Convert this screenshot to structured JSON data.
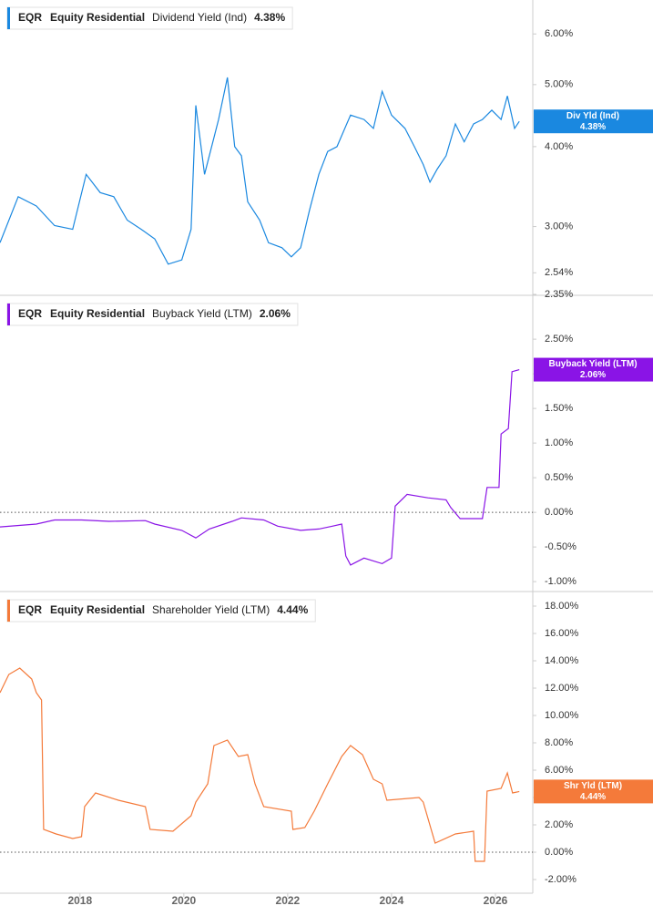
{
  "chart_data": [
    {
      "type": "line",
      "log_scale": true,
      "ticker": "EQR",
      "company": "Equity Residential",
      "xlim": [
        2016.46,
        2026.72
      ],
      "ylim": [
        2.35,
        6.78
      ],
      "yticks": [
        {
          "value": 2.35,
          "label": "2.35%"
        },
        {
          "value": 2.54,
          "label": "2.54%"
        },
        {
          "value": 3,
          "label": "3.00%"
        },
        {
          "value": 4,
          "label": "4.00%"
        },
        {
          "value": 5,
          "label": "5.00%"
        },
        {
          "value": 6,
          "label": "6.00%"
        }
      ],
      "x": [
        2016.46,
        2016.81,
        2017.16,
        2017.51,
        2017.86,
        2018.12,
        2018.39,
        2018.65,
        2018.91,
        2019.18,
        2019.44,
        2019.7,
        2019.96,
        2020.14,
        2020.23,
        2020.4,
        2020.67,
        2020.84,
        2020.98,
        2021.11,
        2021.23,
        2021.46,
        2021.63,
        2021.89,
        2022.07,
        2022.25,
        2022.42,
        2022.6,
        2022.77,
        2022.95,
        2023.21,
        2023.47,
        2023.65,
        2023.82,
        2024.0,
        2024.26,
        2024.44,
        2024.61,
        2024.74,
        2024.88,
        2025.05,
        2025.23,
        2025.4,
        2025.58,
        2025.75,
        2025.93,
        2026.11,
        2026.23,
        2026.37,
        2026.46
      ],
      "series": [
        {
          "name": "Dividend Yield (Ind)",
          "badge": "Div Yld (Ind)",
          "color": "#1a88e0",
          "values": [
            2.83,
            3.34,
            3.23,
            3.01,
            2.97,
            3.62,
            3.39,
            3.34,
            3.07,
            2.97,
            2.87,
            2.62,
            2.66,
            2.97,
            4.64,
            3.62,
            4.41,
            5.13,
            4.0,
            3.87,
            3.28,
            3.07,
            2.83,
            2.78,
            2.69,
            2.78,
            3.18,
            3.62,
            3.93,
            4.0,
            4.48,
            4.41,
            4.27,
            4.88,
            4.48,
            4.27,
            4.0,
            3.75,
            3.52,
            3.69,
            3.87,
            4.34,
            4.07,
            4.34,
            4.41,
            4.56,
            4.41,
            4.8,
            4.27,
            4.38
          ],
          "current": {
            "value": 4.38,
            "label": "4.38%"
          }
        }
      ]
    },
    {
      "type": "line",
      "zero_line": true,
      "ticker": "EQR",
      "company": "Equity Residential",
      "xlim": [
        2016.46,
        2026.72
      ],
      "ylim": [
        -1.13,
        3.12
      ],
      "yticks": [
        {
          "value": -1,
          "label": "-1.00%"
        },
        {
          "value": -0.5,
          "label": "-0.50%"
        },
        {
          "value": 0,
          "label": "0.00%"
        },
        {
          "value": 0.5,
          "label": "0.50%"
        },
        {
          "value": 1,
          "label": "1.00%"
        },
        {
          "value": 1.5,
          "label": "1.50%"
        },
        {
          "value": 2,
          "label": "2.00%"
        },
        {
          "value": 2.5,
          "label": "2.50%"
        }
      ],
      "x": [
        2016.46,
        2017.16,
        2017.51,
        2018.03,
        2018.56,
        2019.26,
        2019.44,
        2019.96,
        2020.23,
        2020.49,
        2020.93,
        2021.11,
        2021.54,
        2021.81,
        2022.25,
        2022.6,
        2022.86,
        2023.04,
        2023.12,
        2023.21,
        2023.47,
        2023.82,
        2024.0,
        2024.07,
        2024.3,
        2024.7,
        2025.05,
        2025.14,
        2025.32,
        2025.75,
        2025.84,
        2026.07,
        2026.11,
        2026.25,
        2026.32,
        2026.46
      ],
      "series": [
        {
          "name": "Buyback Yield (LTM)",
          "badge": "Buyback Yield (LTM)",
          "color": "#8a14e6",
          "values": [
            -0.21,
            -0.17,
            -0.11,
            -0.11,
            -0.13,
            -0.12,
            -0.17,
            -0.26,
            -0.37,
            -0.24,
            -0.13,
            -0.08,
            -0.11,
            -0.2,
            -0.26,
            -0.24,
            -0.2,
            -0.17,
            -0.63,
            -0.76,
            -0.66,
            -0.74,
            -0.66,
            0.09,
            0.26,
            0.21,
            0.18,
            0.07,
            -0.09,
            -0.09,
            0.36,
            0.36,
            1.13,
            1.21,
            2.03,
            2.06
          ],
          "current": {
            "value": 2.06,
            "label": "2.06%"
          }
        }
      ]
    },
    {
      "type": "line",
      "zero_line": true,
      "ticker": "EQR",
      "company": "Equity Residential",
      "xlim": [
        2016.46,
        2026.72
      ],
      "xticks": [
        2018,
        2020,
        2022,
        2024,
        2026
      ],
      "ylim": [
        -3,
        19
      ],
      "yticks": [
        {
          "value": -2,
          "label": "-2.00%"
        },
        {
          "value": 0,
          "label": "0.00%"
        },
        {
          "value": 2,
          "label": "2.00%"
        },
        {
          "value": 4,
          "label": "4.00%"
        },
        {
          "value": 6,
          "label": "6.00%"
        },
        {
          "value": 8,
          "label": "8.00%"
        },
        {
          "value": 10,
          "label": "10.00%"
        },
        {
          "value": 12,
          "label": "12.00%"
        },
        {
          "value": 14,
          "label": "14.00%"
        },
        {
          "value": 16,
          "label": "16.00%"
        },
        {
          "value": 18,
          "label": "18.00%"
        }
      ],
      "x": [
        2016.46,
        2016.63,
        2016.84,
        2017.07,
        2017.16,
        2017.26,
        2017.3,
        2017.54,
        2017.86,
        2018.03,
        2018.09,
        2018.3,
        2018.74,
        2019.26,
        2019.35,
        2019.79,
        2020.14,
        2020.23,
        2020.46,
        2020.58,
        2020.84,
        2021.05,
        2021.23,
        2021.37,
        2021.54,
        2022.07,
        2022.1,
        2022.33,
        2022.51,
        2022.77,
        2023.04,
        2023.21,
        2023.44,
        2023.65,
        2023.82,
        2023.91,
        2024.53,
        2024.61,
        2024.84,
        2025.23,
        2025.58,
        2025.61,
        2025.79,
        2025.84,
        2026.11,
        2026.23,
        2026.33,
        2026.46
      ],
      "series": [
        {
          "name": "Shareholder Yield (LTM)",
          "badge": "Shr Yld (LTM)",
          "color": "#f47a3a",
          "values": [
            11.67,
            13.0,
            13.47,
            12.67,
            11.67,
            11.13,
            1.67,
            1.33,
            1.0,
            1.13,
            3.33,
            4.33,
            3.8,
            3.33,
            1.67,
            1.53,
            2.67,
            3.67,
            5.0,
            7.8,
            8.2,
            7.0,
            7.13,
            5.0,
            3.33,
            3.0,
            1.67,
            1.8,
            3.0,
            5.0,
            7.0,
            7.8,
            7.13,
            5.33,
            5.0,
            3.8,
            4.0,
            3.67,
            0.67,
            1.33,
            1.53,
            -0.67,
            -0.67,
            4.47,
            4.67,
            5.8,
            4.33,
            4.44
          ],
          "current": {
            "value": 4.44,
            "label": "4.44%"
          }
        }
      ]
    }
  ]
}
